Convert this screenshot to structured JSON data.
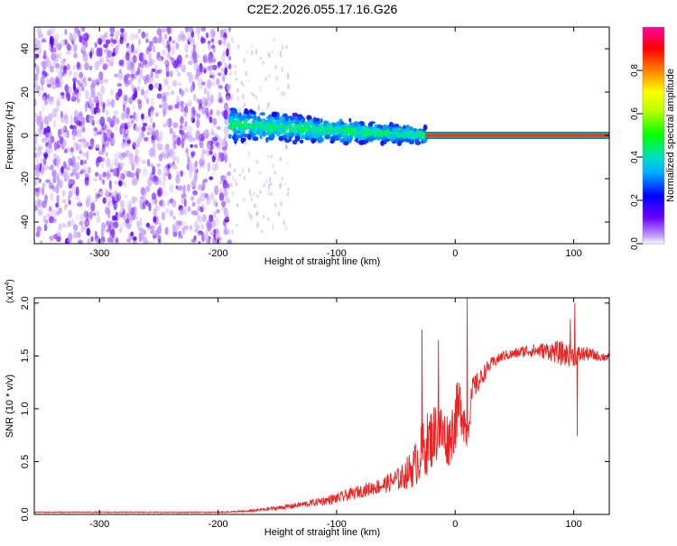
{
  "figure_title": "C2E2.2026.055.17.16.G26",
  "colors": {
    "snr_line": "#ee2222",
    "carrier_band": "#ff2a2a",
    "carrier_edge": "#00c830"
  },
  "chart_data": [
    {
      "type": "heatmap",
      "title": "C2E2.2026.055.17.16.G26",
      "xlabel": "Height of straight line (km)",
      "ylabel": "Frequency (Hz)",
      "xlim": [
        -355,
        130
      ],
      "ylim": [
        -50,
        50
      ],
      "x_ticks": [
        -300,
        -200,
        -100,
        0,
        100
      ],
      "x_tick_labels": [
        "-300",
        "-200",
        "-100",
        "0",
        "100"
      ],
      "y_ticks": [
        -40,
        -20,
        0,
        20,
        40
      ],
      "y_tick_labels": [
        "-40",
        "-20",
        "0",
        "20",
        "40"
      ],
      "colorbar": {
        "label": "Normalized spectral amplitude",
        "range": [
          0,
          1
        ],
        "ticks": [
          0.0,
          0.2,
          0.4,
          0.6,
          0.8
        ],
        "tick_labels": [
          "0.0",
          "0.2",
          "0.4",
          "0.6",
          "0.8"
        ],
        "colormap": "rainbow (violet-blue-cyan-green-yellow-orange-red-magenta)"
      },
      "regions": [
        {
          "description": "broadband noise",
          "x_range": [
            -355,
            -190
          ],
          "freq_range": [
            -50,
            50
          ],
          "amplitude": [
            0.02,
            0.15
          ]
        },
        {
          "description": "spread signal",
          "x_range": [
            -190,
            -25
          ],
          "freq_center_start": 5,
          "freq_center_end": 0,
          "freq_spread_hz": 8,
          "amplitude": [
            0.2,
            0.45
          ]
        },
        {
          "description": "coherent carrier",
          "x_range": [
            -25,
            130
          ],
          "freq_center": 0,
          "amplitude": [
            0.9,
            1.0
          ]
        }
      ]
    },
    {
      "type": "line",
      "title": "",
      "xlabel": "Height of straight line (km)",
      "ylabel": "SNR (10 * v/v)",
      "y_scale_label": "(x10",
      "y_scale_exponent": "4",
      "xlim": [
        -355,
        130
      ],
      "ylim": [
        0,
        2.05
      ],
      "x_ticks": [
        -300,
        -200,
        -100,
        0,
        100
      ],
      "x_tick_labels": [
        "-300",
        "-200",
        "-100",
        "0",
        "100"
      ],
      "y_ticks": [
        0.0,
        0.5,
        1.0,
        1.5,
        2.0
      ],
      "y_tick_labels": [
        "0.0",
        "0.5",
        "1.0",
        "1.5",
        "2.0"
      ],
      "series": [
        {
          "name": "SNR",
          "x": [
            -355,
            -300,
            -250,
            -200,
            -175,
            -150,
            -125,
            -100,
            -80,
            -60,
            -45,
            -35,
            -25,
            -15,
            -5,
            0,
            5,
            10,
            15,
            20,
            25,
            30,
            40,
            50,
            60,
            70,
            80,
            90,
            100,
            110,
            120,
            130
          ],
          "y": [
            0.02,
            0.02,
            0.02,
            0.02,
            0.03,
            0.06,
            0.1,
            0.15,
            0.22,
            0.28,
            0.35,
            0.45,
            0.65,
            0.8,
            0.7,
            0.9,
            1.05,
            0.75,
            1.2,
            1.25,
            1.35,
            1.42,
            1.5,
            1.52,
            1.55,
            1.55,
            1.55,
            1.52,
            1.5,
            1.52,
            1.5,
            1.48
          ],
          "noise_amplitude": [
            0.005,
            0.005,
            0.005,
            0.005,
            0.01,
            0.02,
            0.03,
            0.05,
            0.06,
            0.08,
            0.12,
            0.2,
            0.3,
            0.3,
            0.25,
            0.3,
            0.3,
            0.15,
            0.12,
            0.1,
            0.08,
            0.06,
            0.05,
            0.05,
            0.06,
            0.07,
            0.09,
            0.12,
            0.1,
            0.07,
            0.05,
            0.04
          ]
        }
      ],
      "spikes": [
        {
          "x": -28,
          "y": 1.75
        },
        {
          "x": -14,
          "y": 1.65
        },
        {
          "x": 10,
          "y": 2.05
        },
        {
          "x": 97,
          "y": 1.85
        },
        {
          "x": 101,
          "y": 2.0
        },
        {
          "x": 103,
          "y": 0.74
        }
      ]
    }
  ]
}
